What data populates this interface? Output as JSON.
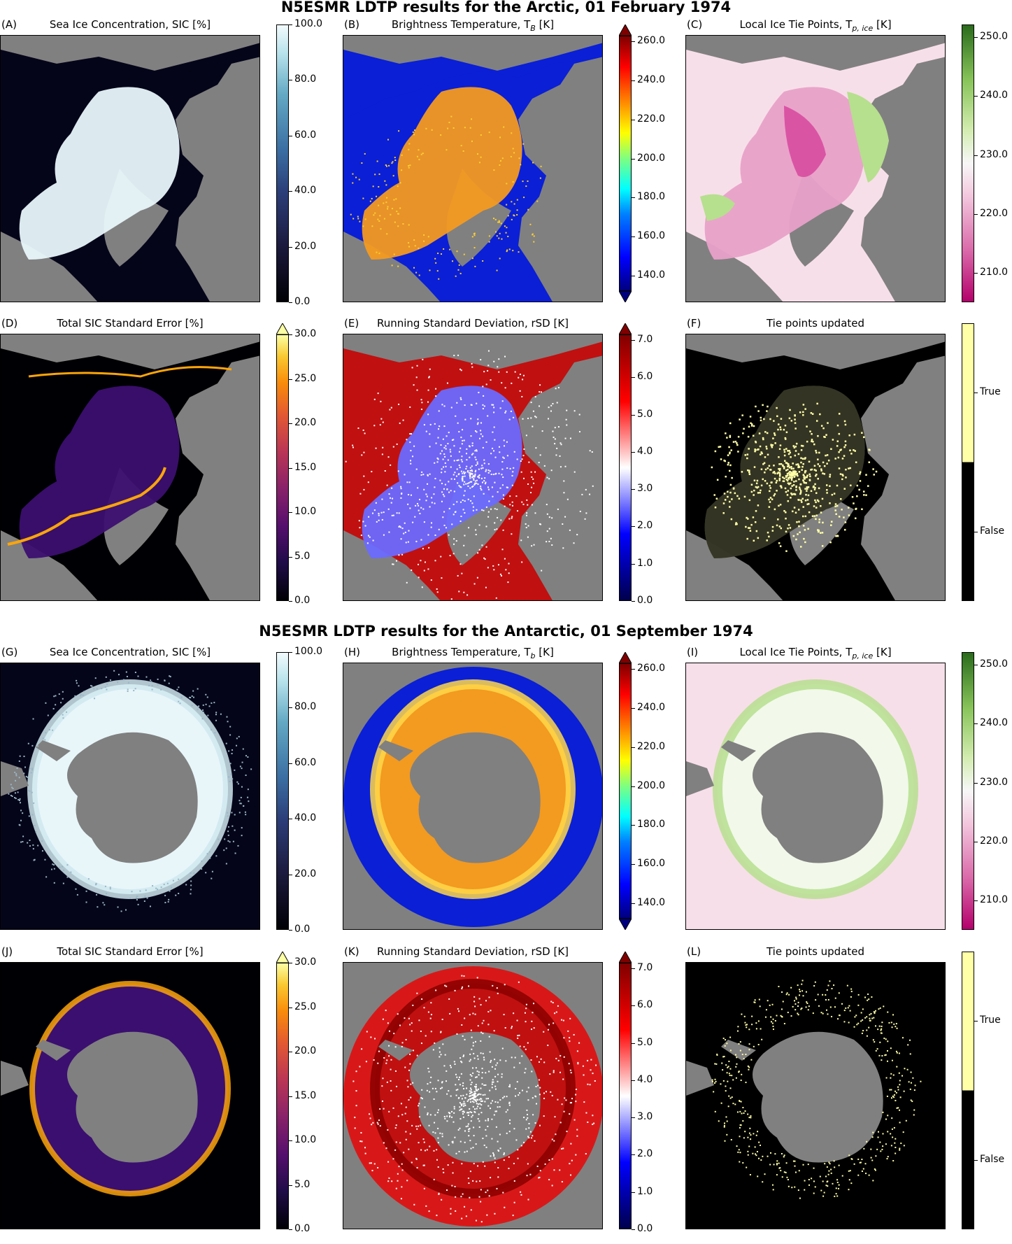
{
  "arctic": {
    "title": "N5ESMR LDTP results for the Arctic, 01 February 1974",
    "panels": [
      {
        "label": "(A)",
        "title": "Sea Ice Concentration, SIC [%]",
        "ticks": [
          "100.0",
          "80.0",
          "60.0",
          "40.0",
          "20.0",
          "0.0"
        ],
        "colormap": "ice",
        "extend": "none"
      },
      {
        "label": "(B)",
        "title": "Brightness Temperature, T",
        "title_sub": "B",
        "title_unit": " [K]",
        "ticks": [
          "260.0",
          "240.0",
          "220.0",
          "200.0",
          "180.0",
          "160.0",
          "140.0"
        ],
        "colormap": "jet",
        "extend": "both"
      },
      {
        "label": "(C)",
        "title": "Local Ice Tie Points, T",
        "title_sub": "p, ice",
        "title_unit": " [K]",
        "ticks": [
          "250.0",
          "240.0",
          "230.0",
          "220.0",
          "210.0"
        ],
        "colormap": "piyg",
        "extend": "none"
      },
      {
        "label": "(D)",
        "title": "Total SIC Standard Error [%]",
        "ticks": [
          "30.0",
          "25.0",
          "20.0",
          "15.0",
          "10.0",
          "5.0",
          "0.0"
        ],
        "colormap": "inferno",
        "extend": "max"
      },
      {
        "label": "(E)",
        "title": "Running Standard Deviation, rSD [K]",
        "ticks": [
          "7.0",
          "6.0",
          "5.0",
          "4.0",
          "3.0",
          "2.0",
          "1.0",
          "0.0"
        ],
        "colormap": "seismic",
        "extend": "max"
      },
      {
        "label": "(F)",
        "title": "Tie points updated",
        "ticks": [
          "True",
          "False"
        ],
        "colormap": "binary",
        "extend": "none"
      }
    ]
  },
  "antarctic": {
    "title": "N5ESMR LDTP results for the Antarctic, 01 September 1974",
    "panels": [
      {
        "label": "(G)",
        "title": "Sea Ice Concentration, SIC [%]",
        "ticks": [
          "100.0",
          "80.0",
          "60.0",
          "40.0",
          "20.0",
          "0.0"
        ],
        "colormap": "ice",
        "extend": "none"
      },
      {
        "label": "(H)",
        "title": "Brightness Temperature, T",
        "title_sub": "b",
        "title_unit": " [K]",
        "ticks": [
          "260.0",
          "240.0",
          "220.0",
          "200.0",
          "180.0",
          "160.0",
          "140.0"
        ],
        "colormap": "jet",
        "extend": "both"
      },
      {
        "label": "(I)",
        "title": "Local Ice Tie Points, T",
        "title_sub": "p, ice",
        "title_unit": " [K]",
        "ticks": [
          "250.0",
          "240.0",
          "230.0",
          "220.0",
          "210.0"
        ],
        "colormap": "piyg",
        "extend": "none"
      },
      {
        "label": "(J)",
        "title": "Total SIC Standard Error [%]",
        "ticks": [
          "30.0",
          "25.0",
          "20.0",
          "15.0",
          "10.0",
          "5.0",
          "0.0"
        ],
        "colormap": "inferno",
        "extend": "max"
      },
      {
        "label": "(K)",
        "title": "Running Standard Deviation, rSD [K]",
        "ticks": [
          "7.0",
          "6.0",
          "5.0",
          "4.0",
          "3.0",
          "2.0",
          "1.0",
          "0.0"
        ],
        "colormap": "seismic",
        "extend": "max"
      },
      {
        "label": "(L)",
        "title": "Tie points updated",
        "ticks": [
          "True",
          "False"
        ],
        "colormap": "binary",
        "extend": "none"
      }
    ]
  },
  "colors": {
    "land": "#808080",
    "ocean_dark": "#05051a",
    "ice": "#e8f6fa",
    "jet_ocean": "#0a1fd6",
    "jet_ice": "#f39a20",
    "piyg_bg": "#f7dfe9",
    "piyg_green": "#b6df8e",
    "piyg_pink": "#d6409a",
    "inferno_bg": "#000004",
    "inferno_ice": "#3b0f70",
    "inferno_edge": "#fca50a",
    "seismic_red": "#c01010",
    "seismic_blue": "#6a6aff",
    "binary_true": "#ffffa8",
    "binary_false": "#000000"
  }
}
